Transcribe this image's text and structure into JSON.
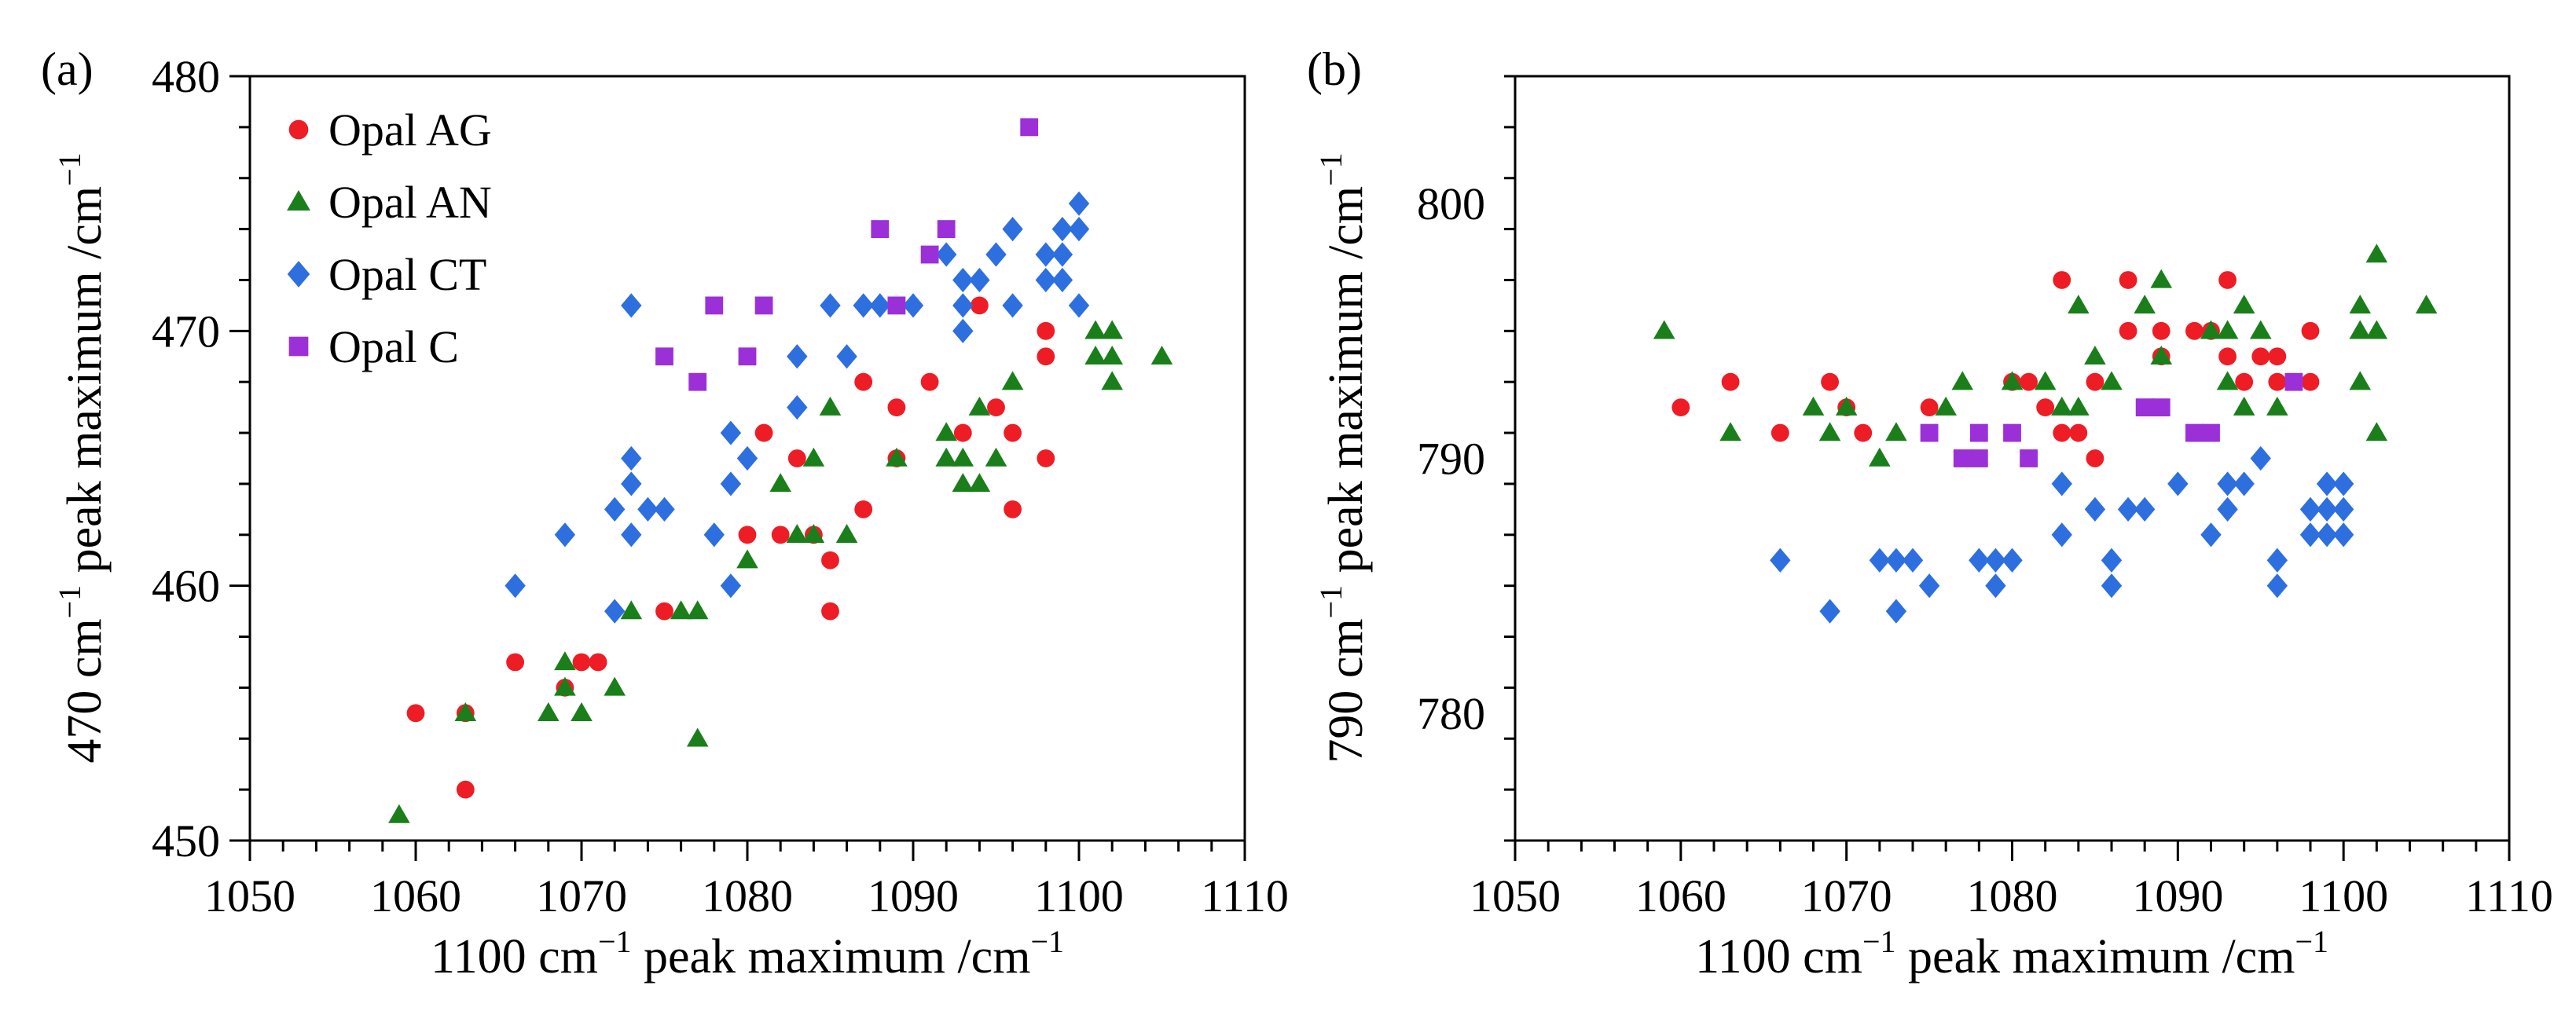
{
  "chart_data": [
    {
      "type": "scatter",
      "panel_label": "(a)",
      "xlabel": {
        "main": "1100 cm",
        "sup": "−1",
        "rest": " peak maximum /cm",
        "sup2": "−1"
      },
      "ylabel": {
        "main": "470 cm",
        "sup": "−1",
        "rest": " peak maximum /cm",
        "sup2": "−1"
      },
      "xlim": [
        1050,
        1110
      ],
      "ylim": [
        450,
        480
      ],
      "xticks": [
        1050,
        1060,
        1070,
        1080,
        1090,
        1100,
        1110
      ],
      "yticks": [
        450,
        460,
        470,
        480
      ],
      "legend_position": "top-left",
      "series": [
        {
          "name": "Opal AG",
          "marker": "circle",
          "color": "#ee1c25",
          "points": [
            [
              1060,
              455
            ],
            [
              1063,
              455
            ],
            [
              1063,
              452
            ],
            [
              1066,
              457
            ],
            [
              1069,
              456
            ],
            [
              1070,
              457
            ],
            [
              1071,
              457
            ],
            [
              1075,
              459
            ],
            [
              1080,
              462
            ],
            [
              1081,
              466
            ],
            [
              1082,
              462
            ],
            [
              1083,
              465
            ],
            [
              1084,
              462
            ],
            [
              1085,
              461
            ],
            [
              1085,
              459
            ],
            [
              1087,
              468
            ],
            [
              1087,
              463
            ],
            [
              1089,
              467
            ],
            [
              1089,
              465
            ],
            [
              1091,
              468
            ],
            [
              1093,
              466
            ],
            [
              1094,
              471
            ],
            [
              1095,
              467
            ],
            [
              1096,
              466
            ],
            [
              1096,
              463
            ],
            [
              1098,
              470
            ],
            [
              1098,
              469
            ],
            [
              1098,
              465
            ]
          ]
        },
        {
          "name": "Opal AN",
          "marker": "triangle",
          "color": "#1a7f1a",
          "points": [
            [
              1059,
              451
            ],
            [
              1063,
              455
            ],
            [
              1068,
              455
            ],
            [
              1069,
              457
            ],
            [
              1069,
              456
            ],
            [
              1070,
              455
            ],
            [
              1072,
              456
            ],
            [
              1073,
              459
            ],
            [
              1076,
              459
            ],
            [
              1077,
              459
            ],
            [
              1077,
              454
            ],
            [
              1080,
              461
            ],
            [
              1082,
              464
            ],
            [
              1083,
              462
            ],
            [
              1084,
              462
            ],
            [
              1084,
              465
            ],
            [
              1085,
              467
            ],
            [
              1086,
              462
            ],
            [
              1089,
              465
            ],
            [
              1092,
              466
            ],
            [
              1092,
              465
            ],
            [
              1093,
              465
            ],
            [
              1093,
              464
            ],
            [
              1094,
              467
            ],
            [
              1094,
              464
            ],
            [
              1095,
              465
            ],
            [
              1096,
              468
            ],
            [
              1101,
              470
            ],
            [
              1101,
              469
            ],
            [
              1102,
              470
            ],
            [
              1102,
              469
            ],
            [
              1102,
              468
            ],
            [
              1105,
              469
            ]
          ]
        },
        {
          "name": "Opal CT",
          "marker": "diamond",
          "color": "#2e6fe0",
          "points": [
            [
              1066,
              460
            ],
            [
              1069,
              462
            ],
            [
              1072,
              459
            ],
            [
              1072,
              463
            ],
            [
              1073,
              471
            ],
            [
              1073,
              465
            ],
            [
              1073,
              464
            ],
            [
              1073,
              462
            ],
            [
              1074,
              463
            ],
            [
              1075,
              463
            ],
            [
              1078,
              462
            ],
            [
              1079,
              466
            ],
            [
              1079,
              464
            ],
            [
              1079,
              460
            ],
            [
              1080,
              465
            ],
            [
              1083,
              469
            ],
            [
              1083,
              467
            ],
            [
              1085,
              471
            ],
            [
              1086,
              469
            ],
            [
              1087,
              471
            ],
            [
              1088,
              471
            ],
            [
              1090,
              471
            ],
            [
              1092,
              473
            ],
            [
              1093,
              472
            ],
            [
              1093,
              471
            ],
            [
              1093,
              470
            ],
            [
              1094,
              472
            ],
            [
              1095,
              473
            ],
            [
              1096,
              474
            ],
            [
              1096,
              471
            ],
            [
              1098,
              473
            ],
            [
              1098,
              472
            ],
            [
              1099,
              474
            ],
            [
              1099,
              473
            ],
            [
              1099,
              472
            ],
            [
              1100,
              475
            ],
            [
              1100,
              474
            ],
            [
              1100,
              471
            ]
          ]
        },
        {
          "name": "Opal C",
          "marker": "square",
          "color": "#9b30d8",
          "points": [
            [
              1075,
              469
            ],
            [
              1077,
              468
            ],
            [
              1078,
              471
            ],
            [
              1080,
              469
            ],
            [
              1081,
              471
            ],
            [
              1088,
              474
            ],
            [
              1089,
              471
            ],
            [
              1091,
              473
            ],
            [
              1092,
              474
            ],
            [
              1097,
              478
            ]
          ]
        }
      ]
    },
    {
      "type": "scatter",
      "panel_label": "(b)",
      "xlabel": {
        "main": "1100 cm",
        "sup": "−1",
        "rest": " peak maximum /cm",
        "sup2": "−1"
      },
      "ylabel": {
        "main": "790 cm",
        "sup": "−1",
        "rest": " peak maximum /cm",
        "sup2": "−1"
      },
      "xlim": [
        1050,
        1110
      ],
      "ylim": [
        775,
        805
      ],
      "xticks": [
        1050,
        1060,
        1070,
        1080,
        1090,
        1100,
        1110
      ],
      "yticks": [
        780,
        790,
        800
      ],
      "series": [
        {
          "name": "Opal AG",
          "marker": "circle",
          "color": "#ee1c25",
          "points": [
            [
              1060,
              792
            ],
            [
              1063,
              793
            ],
            [
              1066,
              791
            ],
            [
              1069,
              793
            ],
            [
              1070,
              792
            ],
            [
              1071,
              791
            ],
            [
              1075,
              792
            ],
            [
              1080,
              793
            ],
            [
              1081,
              793
            ],
            [
              1082,
              792
            ],
            [
              1083,
              797
            ],
            [
              1083,
              791
            ],
            [
              1084,
              791
            ],
            [
              1085,
              793
            ],
            [
              1085,
              790
            ],
            [
              1087,
              797
            ],
            [
              1087,
              795
            ],
            [
              1089,
              795
            ],
            [
              1089,
              794
            ],
            [
              1091,
              795
            ],
            [
              1092,
              795
            ],
            [
              1093,
              797
            ],
            [
              1093,
              794
            ],
            [
              1094,
              793
            ],
            [
              1095,
              794
            ],
            [
              1096,
              794
            ],
            [
              1096,
              793
            ],
            [
              1098,
              795
            ],
            [
              1098,
              793
            ]
          ]
        },
        {
          "name": "Opal AN",
          "marker": "triangle",
          "color": "#1a7f1a",
          "points": [
            [
              1059,
              795
            ],
            [
              1063,
              791
            ],
            [
              1068,
              792
            ],
            [
              1069,
              791
            ],
            [
              1070,
              792
            ],
            [
              1072,
              790
            ],
            [
              1073,
              791
            ],
            [
              1076,
              792
            ],
            [
              1077,
              793
            ],
            [
              1080,
              793
            ],
            [
              1082,
              793
            ],
            [
              1083,
              792
            ],
            [
              1084,
              796
            ],
            [
              1084,
              792
            ],
            [
              1085,
              794
            ],
            [
              1086,
              793
            ],
            [
              1088,
              796
            ],
            [
              1089,
              797
            ],
            [
              1089,
              794
            ],
            [
              1092,
              795
            ],
            [
              1093,
              795
            ],
            [
              1093,
              793
            ],
            [
              1094,
              796
            ],
            [
              1094,
              792
            ],
            [
              1095,
              795
            ],
            [
              1096,
              792
            ],
            [
              1101,
              796
            ],
            [
              1101,
              795
            ],
            [
              1101,
              793
            ],
            [
              1102,
              798
            ],
            [
              1102,
              795
            ],
            [
              1102,
              791
            ],
            [
              1105,
              796
            ]
          ]
        },
        {
          "name": "Opal CT",
          "marker": "diamond",
          "color": "#2e6fe0",
          "points": [
            [
              1066,
              786
            ],
            [
              1069,
              784
            ],
            [
              1072,
              786
            ],
            [
              1073,
              786
            ],
            [
              1073,
              784
            ],
            [
              1074,
              786
            ],
            [
              1075,
              785
            ],
            [
              1078,
              786
            ],
            [
              1079,
              786
            ],
            [
              1079,
              785
            ],
            [
              1080,
              786
            ],
            [
              1083,
              789
            ],
            [
              1083,
              787
            ],
            [
              1085,
              788
            ],
            [
              1086,
              786
            ],
            [
              1086,
              785
            ],
            [
              1087,
              788
            ],
            [
              1088,
              788
            ],
            [
              1090,
              789
            ],
            [
              1092,
              787
            ],
            [
              1093,
              789
            ],
            [
              1093,
              788
            ],
            [
              1094,
              789
            ],
            [
              1095,
              790
            ],
            [
              1096,
              786
            ],
            [
              1096,
              785
            ],
            [
              1098,
              788
            ],
            [
              1098,
              787
            ],
            [
              1099,
              789
            ],
            [
              1099,
              788
            ],
            [
              1099,
              787
            ],
            [
              1100,
              789
            ],
            [
              1100,
              788
            ],
            [
              1100,
              787
            ]
          ]
        },
        {
          "name": "Opal C",
          "marker": "square",
          "color": "#9b30d8",
          "points": [
            [
              1075,
              791
            ],
            [
              1077,
              790
            ],
            [
              1078,
              791
            ],
            [
              1078,
              790
            ],
            [
              1080,
              791
            ],
            [
              1081,
              790
            ],
            [
              1088,
              792
            ],
            [
              1089,
              792
            ],
            [
              1091,
              791
            ],
            [
              1092,
              791
            ],
            [
              1097,
              793
            ]
          ]
        }
      ]
    }
  ]
}
